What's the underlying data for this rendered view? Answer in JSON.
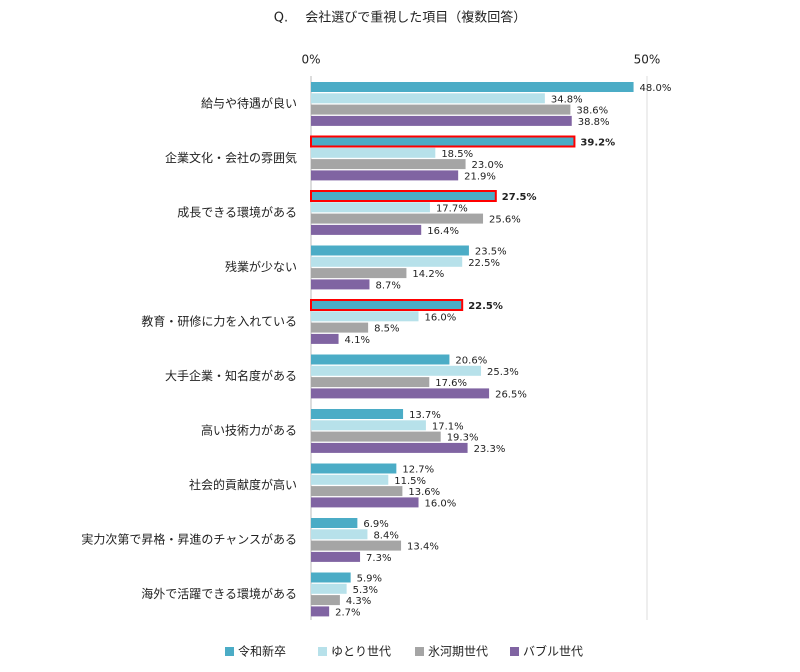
{
  "chart_data": {
    "type": "hbar",
    "title": "Q.　 会社選びで重視した項目（複数回答）",
    "categories": [
      "給与や待遇が良い",
      "企業文化・会社の雰囲気",
      "成長できる環境がある",
      "残業が少ない",
      "教育・研修に力を入れている",
      "大手企業・知名度がある",
      "高い技術力がある",
      "社会的貢献度が高い",
      "実力次第で昇格・昇進のチャンスがある",
      "海外で活躍できる環境がある"
    ],
    "series": [
      {
        "name": "令和新卒",
        "color": "#4bacc6",
        "values": [
          48.0,
          39.2,
          27.5,
          23.5,
          22.5,
          20.6,
          13.7,
          12.7,
          6.9,
          5.9
        ],
        "value_labels": [
          "48.0%",
          "39.2%",
          "27.5%",
          "23.5%",
          "22.5%",
          "20.6%",
          "13.7%",
          "12.7%",
          "6.9%",
          "5.9%"
        ]
      },
      {
        "name": "ゆとり世代",
        "color": "#b7e1ea",
        "values": [
          34.8,
          18.5,
          17.7,
          22.5,
          16.0,
          25.3,
          17.1,
          11.5,
          8.4,
          5.3
        ],
        "value_labels": [
          "34.8%",
          "18.5%",
          "17.7%",
          "22.5%",
          "16.0%",
          "25.3%",
          "17.1%",
          "11.5%",
          "8.4%",
          "5.3%"
        ]
      },
      {
        "name": "氷河期世代",
        "color": "#a5a5a5",
        "values": [
          38.6,
          23.0,
          25.6,
          14.2,
          8.5,
          17.6,
          19.3,
          13.6,
          13.4,
          4.3
        ],
        "value_labels": [
          "38.6%",
          "23.0%",
          "25.6%",
          "14.2%",
          "8.5%",
          "17.6%",
          "19.3%",
          "13.6%",
          "13.4%",
          "4.3%"
        ]
      },
      {
        "name": "バブル世代",
        "color": "#8064a2",
        "values": [
          38.8,
          21.9,
          16.4,
          8.7,
          4.1,
          26.5,
          23.3,
          16.0,
          7.3,
          2.7
        ],
        "value_labels": [
          "38.8%",
          "21.9%",
          "16.4%",
          "8.7%",
          "4.1%",
          "26.5%",
          "23.3%",
          "16.0%",
          "7.3%",
          "2.7%"
        ]
      }
    ],
    "xlim": [
      0,
      50
    ],
    "xticks": [
      {
        "value": 0,
        "label": "0%"
      },
      {
        "value": 50,
        "label": "50%"
      }
    ],
    "grid": true,
    "legend": "bottom",
    "highlight": {
      "series": 0,
      "categories": [
        1,
        2,
        4
      ],
      "color": "#ff0000"
    }
  }
}
